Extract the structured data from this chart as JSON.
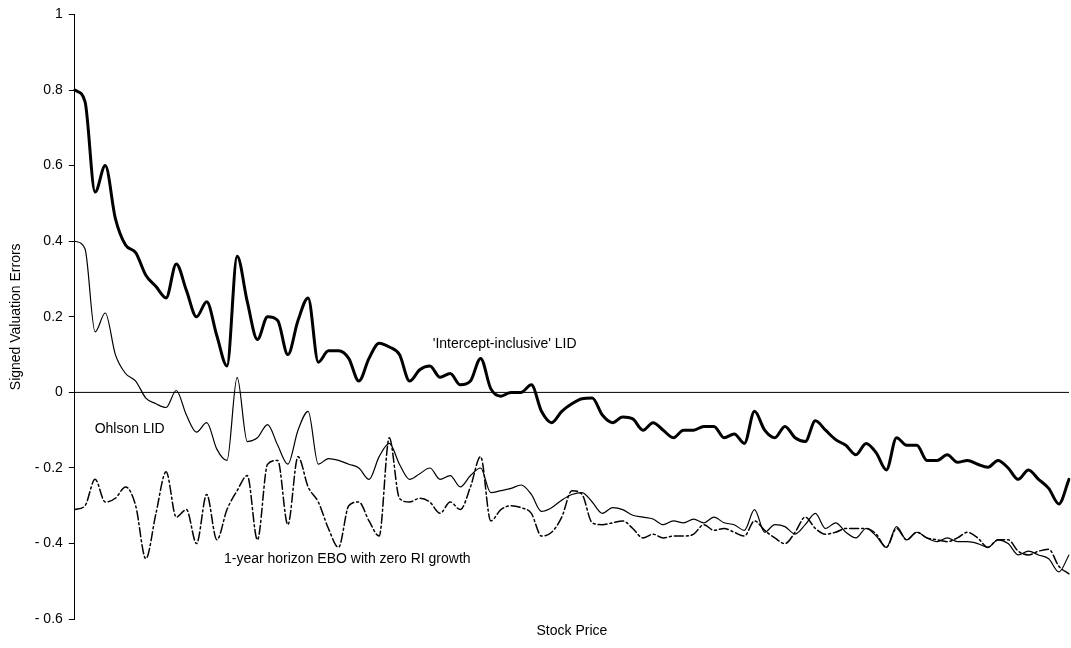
{
  "chart_data": {
    "type": "line",
    "xlabel": "Stock Price",
    "ylabel": "Signed Valuation Errors",
    "categories": [
      null,
      null,
      null,
      null,
      null,
      null,
      null,
      null,
      null,
      null,
      null,
      null,
      null,
      null,
      null,
      null,
      null,
      null,
      null,
      null,
      null,
      null,
      null,
      null,
      null,
      null,
      null,
      null,
      null,
      null,
      null,
      null,
      null,
      null,
      null,
      null,
      null,
      null,
      null,
      null,
      null,
      null,
      null,
      null,
      null,
      null,
      null,
      null,
      null,
      null,
      null,
      null,
      null,
      null,
      null,
      null,
      null,
      null,
      null,
      null,
      null,
      null,
      null,
      null,
      null,
      null,
      null,
      null,
      null,
      null,
      null,
      null,
      null,
      null,
      null,
      null,
      null,
      null,
      null,
      null,
      null,
      null,
      null,
      null,
      null,
      null,
      null,
      null,
      null,
      null,
      null,
      null,
      null,
      null,
      null,
      null,
      null,
      null,
      null
    ],
    "series": [
      {
        "name": "'Intercept-inclusive' LID",
        "color": "#000000",
        "line_style": "solid",
        "values": [
          0.8,
          0.77,
          0.53,
          0.6,
          0.46,
          0.39,
          0.37,
          0.31,
          0.28,
          0.25,
          0.34,
          0.27,
          0.2,
          0.24,
          0.15,
          0.07,
          0.36,
          0.24,
          0.14,
          0.2,
          0.19,
          0.1,
          0.19,
          0.25,
          0.08,
          0.11,
          0.11,
          0.09,
          0.03,
          0.09,
          0.13,
          0.12,
          0.1,
          0.03,
          0.06,
          0.07,
          0.04,
          0.05,
          0.02,
          0.03,
          0.09,
          0.01,
          -0.01,
          0.0,
          0.0,
          0.02,
          -0.05,
          -0.08,
          -0.05,
          -0.03,
          -0.017,
          -0.015,
          -0.06,
          -0.08,
          -0.065,
          -0.07,
          -0.1,
          -0.08,
          -0.1,
          -0.12,
          -0.1,
          -0.1,
          -0.09,
          -0.09,
          -0.12,
          -0.11,
          -0.135,
          -0.05,
          -0.1,
          -0.12,
          -0.09,
          -0.12,
          -0.13,
          -0.075,
          -0.1,
          -0.125,
          -0.14,
          -0.165,
          -0.135,
          -0.16,
          -0.205,
          -0.12,
          -0.14,
          -0.14,
          -0.18,
          -0.18,
          -0.165,
          -0.185,
          -0.18,
          -0.19,
          -0.198,
          -0.18,
          -0.2,
          -0.23,
          -0.205,
          -0.23,
          -0.254,
          -0.295,
          -0.23
        ]
      },
      {
        "name": "Ohlson LID",
        "color": "#000000",
        "line_style": "solid",
        "values": [
          0.4,
          0.38,
          0.16,
          0.21,
          0.1,
          0.05,
          0.03,
          -0.015,
          -0.03,
          -0.04,
          0.005,
          -0.06,
          -0.105,
          -0.08,
          -0.15,
          -0.18,
          0.04,
          -0.13,
          -0.12,
          -0.085,
          -0.14,
          -0.19,
          -0.1,
          -0.05,
          -0.19,
          -0.175,
          -0.18,
          -0.19,
          -0.2,
          -0.23,
          -0.17,
          -0.135,
          -0.19,
          -0.23,
          -0.215,
          -0.2,
          -0.23,
          -0.22,
          -0.25,
          -0.22,
          -0.2,
          -0.265,
          -0.26,
          -0.254,
          -0.245,
          -0.27,
          -0.315,
          -0.305,
          -0.285,
          -0.27,
          -0.265,
          -0.29,
          -0.32,
          -0.305,
          -0.31,
          -0.325,
          -0.33,
          -0.335,
          -0.35,
          -0.34,
          -0.345,
          -0.335,
          -0.345,
          -0.33,
          -0.345,
          -0.35,
          -0.365,
          -0.31,
          -0.37,
          -0.35,
          -0.355,
          -0.375,
          -0.35,
          -0.32,
          -0.36,
          -0.345,
          -0.37,
          -0.385,
          -0.36,
          -0.38,
          -0.41,
          -0.355,
          -0.39,
          -0.37,
          -0.385,
          -0.395,
          -0.385,
          -0.395,
          -0.395,
          -0.4,
          -0.41,
          -0.39,
          -0.4,
          -0.43,
          -0.42,
          -0.43,
          -0.44,
          -0.475,
          -0.43
        ]
      },
      {
        "name": "1-year horizon EBO with zero RI growth",
        "color": "#000000",
        "line_style": "dashed",
        "values": [
          -0.31,
          -0.3,
          -0.23,
          -0.29,
          -0.28,
          -0.25,
          -0.3,
          -0.44,
          -0.32,
          -0.21,
          -0.33,
          -0.31,
          -0.4,
          -0.27,
          -0.39,
          -0.31,
          -0.26,
          -0.22,
          -0.39,
          -0.19,
          -0.18,
          -0.35,
          -0.17,
          -0.25,
          -0.29,
          -0.36,
          -0.41,
          -0.3,
          -0.29,
          -0.34,
          -0.38,
          -0.12,
          -0.28,
          -0.29,
          -0.28,
          -0.29,
          -0.32,
          -0.29,
          -0.31,
          -0.25,
          -0.17,
          -0.34,
          -0.31,
          -0.3,
          -0.305,
          -0.32,
          -0.38,
          -0.37,
          -0.33,
          -0.26,
          -0.27,
          -0.345,
          -0.35,
          -0.345,
          -0.34,
          -0.36,
          -0.385,
          -0.375,
          -0.385,
          -0.38,
          -0.38,
          -0.375,
          -0.35,
          -0.365,
          -0.36,
          -0.37,
          -0.38,
          -0.34,
          -0.365,
          -0.385,
          -0.4,
          -0.37,
          -0.33,
          -0.36,
          -0.375,
          -0.37,
          -0.36,
          -0.36,
          -0.36,
          -0.375,
          -0.41,
          -0.36,
          -0.39,
          -0.37,
          -0.385,
          -0.39,
          -0.395,
          -0.385,
          -0.37,
          -0.385,
          -0.41,
          -0.39,
          -0.39,
          -0.42,
          -0.43,
          -0.42,
          -0.415,
          -0.46,
          -0.48
        ]
      }
    ],
    "ylim": [
      -0.6,
      1
    ],
    "yticks": [
      {
        "value": -0.6,
        "label": "- 0.6"
      },
      {
        "value": -0.4,
        "label": "- 0.4"
      },
      {
        "value": -0.2,
        "label": "- 0.2"
      },
      0,
      0.2,
      0.4,
      0.6,
      0.8,
      1
    ],
    "ref_lines": [
      {
        "axis": "y",
        "value": 0,
        "color": "#000000"
      }
    ],
    "grid": false,
    "legend": false,
    "marker": "none",
    "tick_labels": "y"
  }
}
